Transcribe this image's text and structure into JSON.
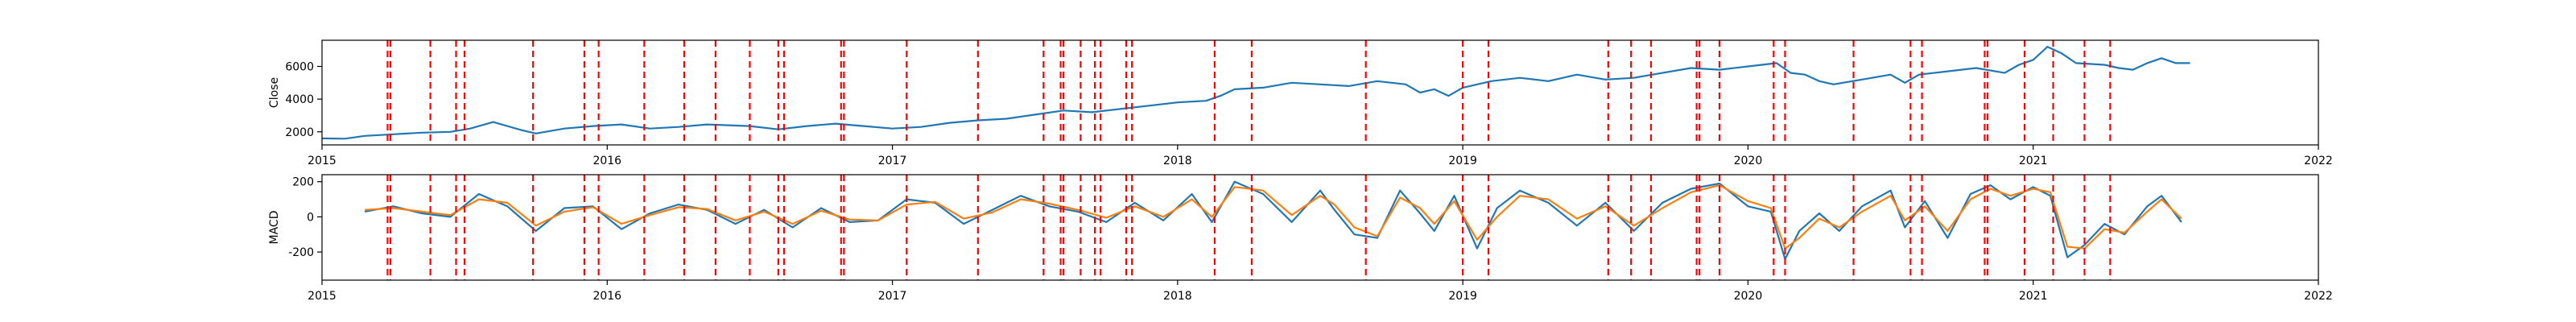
{
  "chart_data": [
    {
      "type": "line",
      "ylabel": "Close",
      "ylim": [
        1200,
        7600
      ],
      "yticks": [
        2000,
        4000,
        6000
      ],
      "xlim": [
        2015.0,
        2022.0
      ],
      "xticks": [
        "2015",
        "2016",
        "2017",
        "2018",
        "2019",
        "2020",
        "2021",
        "2022"
      ],
      "series": [
        {
          "color": "#1f77b4",
          "x": [
            2015.0,
            2015.08,
            2015.15,
            2015.25,
            2015.35,
            2015.45,
            2015.52,
            2015.6,
            2015.7,
            2015.75,
            2015.85,
            2015.95,
            2016.05,
            2016.15,
            2016.25,
            2016.35,
            2016.5,
            2016.6,
            2016.7,
            2016.8,
            2016.9,
            2017.0,
            2017.1,
            2017.2,
            2017.3,
            2017.4,
            2017.5,
            2017.6,
            2017.7,
            2017.8,
            2017.9,
            2018.0,
            2018.1,
            2018.15,
            2018.2,
            2018.3,
            2018.4,
            2018.5,
            2018.6,
            2018.7,
            2018.8,
            2018.85,
            2018.9,
            2018.95,
            2019.0,
            2019.1,
            2019.2,
            2019.3,
            2019.4,
            2019.5,
            2019.6,
            2019.7,
            2019.8,
            2019.9,
            2020.0,
            2020.1,
            2020.15,
            2020.2,
            2020.25,
            2020.3,
            2020.4,
            2020.5,
            2020.55,
            2020.6,
            2020.7,
            2020.8,
            2020.9,
            2020.95,
            2021.0,
            2021.05,
            2021.1,
            2021.15,
            2021.25,
            2021.3,
            2021.35,
            2021.4,
            2021.45,
            2021.5,
            2021.55
          ],
          "y": [
            1600,
            1580,
            1750,
            1850,
            1950,
            2000,
            2200,
            2600,
            2100,
            1900,
            2200,
            2350,
            2450,
            2200,
            2300,
            2450,
            2350,
            2150,
            2350,
            2500,
            2350,
            2200,
            2300,
            2550,
            2700,
            2800,
            3050,
            3300,
            3200,
            3400,
            3600,
            3800,
            3900,
            4200,
            4600,
            4700,
            5000,
            4900,
            4800,
            5100,
            4900,
            4400,
            4600,
            4200,
            4700,
            5100,
            5300,
            5100,
            5500,
            5200,
            5300,
            5600,
            5900,
            5800,
            6000,
            6200,
            5600,
            5500,
            5100,
            4900,
            5200,
            5500,
            5000,
            5500,
            5700,
            5900,
            5600,
            6100,
            6400,
            7200,
            6800,
            6200,
            6100,
            5900,
            5800,
            6200,
            6500,
            6200,
            6200
          ]
        }
      ]
    },
    {
      "type": "line",
      "ylabel": "MACD",
      "ylim": [
        -360,
        240
      ],
      "yticks": [
        -200,
        0,
        200
      ],
      "xlim": [
        2015.0,
        2022.0
      ],
      "xticks": [
        "2015",
        "2016",
        "2017",
        "2018",
        "2019",
        "2020",
        "2021",
        "2022"
      ],
      "series": [
        {
          "color": "#1f77b4",
          "x": [
            2015.15,
            2015.25,
            2015.35,
            2015.45,
            2015.55,
            2015.65,
            2015.75,
            2015.85,
            2015.95,
            2016.05,
            2016.15,
            2016.25,
            2016.35,
            2016.45,
            2016.55,
            2016.65,
            2016.75,
            2016.85,
            2016.95,
            2017.05,
            2017.15,
            2017.25,
            2017.35,
            2017.45,
            2017.55,
            2017.65,
            2017.75,
            2017.85,
            2017.95,
            2018.05,
            2018.12,
            2018.2,
            2018.3,
            2018.4,
            2018.5,
            2018.55,
            2018.62,
            2018.7,
            2018.78,
            2018.85,
            2018.9,
            2018.97,
            2019.05,
            2019.12,
            2019.2,
            2019.3,
            2019.4,
            2019.5,
            2019.6,
            2019.7,
            2019.8,
            2019.9,
            2020.0,
            2020.08,
            2020.13,
            2020.18,
            2020.25,
            2020.32,
            2020.4,
            2020.5,
            2020.55,
            2020.62,
            2020.7,
            2020.78,
            2020.85,
            2020.92,
            2021.0,
            2021.06,
            2021.12,
            2021.18,
            2021.25,
            2021.32,
            2021.4,
            2021.45,
            2021.52
          ],
          "y": [
            30,
            60,
            20,
            0,
            130,
            60,
            -80,
            50,
            60,
            -70,
            20,
            70,
            40,
            -40,
            40,
            -60,
            50,
            -30,
            -20,
            100,
            80,
            -40,
            40,
            120,
            60,
            30,
            -30,
            80,
            -20,
            130,
            -30,
            200,
            130,
            -30,
            150,
            40,
            -100,
            -120,
            150,
            20,
            -80,
            120,
            -180,
            50,
            150,
            80,
            -50,
            80,
            -80,
            80,
            160,
            190,
            60,
            30,
            -240,
            -80,
            20,
            -80,
            60,
            150,
            -60,
            90,
            -120,
            130,
            180,
            100,
            170,
            120,
            -230,
            -160,
            -40,
            -100,
            60,
            120,
            -30
          ]
        },
        {
          "color": "#ff7f0e",
          "x": [
            2015.15,
            2015.25,
            2015.35,
            2015.45,
            2015.55,
            2015.65,
            2015.75,
            2015.85,
            2015.95,
            2016.05,
            2016.15,
            2016.25,
            2016.35,
            2016.45,
            2016.55,
            2016.65,
            2016.75,
            2016.85,
            2016.95,
            2017.05,
            2017.15,
            2017.25,
            2017.35,
            2017.45,
            2017.55,
            2017.65,
            2017.75,
            2017.85,
            2017.95,
            2018.05,
            2018.12,
            2018.2,
            2018.3,
            2018.4,
            2018.5,
            2018.55,
            2018.62,
            2018.7,
            2018.78,
            2018.85,
            2018.9,
            2018.97,
            2019.05,
            2019.12,
            2019.2,
            2019.3,
            2019.4,
            2019.5,
            2019.6,
            2019.7,
            2019.8,
            2019.9,
            2020.0,
            2020.08,
            2020.13,
            2020.18,
            2020.25,
            2020.32,
            2020.4,
            2020.5,
            2020.55,
            2020.62,
            2020.7,
            2020.78,
            2020.85,
            2020.92,
            2021.0,
            2021.06,
            2021.12,
            2021.18,
            2021.25,
            2021.32,
            2021.4,
            2021.45,
            2021.52
          ],
          "y": [
            40,
            50,
            30,
            10,
            100,
            80,
            -50,
            30,
            55,
            -40,
            10,
            55,
            45,
            -20,
            30,
            -40,
            35,
            -15,
            -20,
            70,
            85,
            -10,
            25,
            100,
            75,
            40,
            -5,
            60,
            0,
            100,
            0,
            170,
            150,
            10,
            120,
            70,
            -60,
            -110,
            110,
            50,
            -40,
            90,
            -130,
            0,
            120,
            100,
            -10,
            60,
            -50,
            50,
            140,
            180,
            90,
            50,
            -180,
            -120,
            -10,
            -60,
            30,
            120,
            -20,
            60,
            -80,
            100,
            160,
            120,
            160,
            140,
            -170,
            -180,
            -70,
            -90,
            30,
            100,
            -10
          ]
        }
      ]
    }
  ],
  "events": [
    2015.23,
    2015.24,
    2015.38,
    2015.47,
    2015.5,
    2015.74,
    2015.92,
    2015.97,
    2016.13,
    2016.27,
    2016.38,
    2016.5,
    2016.6,
    2016.62,
    2016.82,
    2016.83,
    2017.05,
    2017.3,
    2017.53,
    2017.59,
    2017.6,
    2017.66,
    2017.71,
    2017.73,
    2017.82,
    2017.84,
    2018.13,
    2018.26,
    2018.66,
    2019.0,
    2019.09,
    2019.51,
    2019.59,
    2019.66,
    2019.82,
    2019.83,
    2019.9,
    2020.09,
    2020.13,
    2020.37,
    2020.57,
    2020.61,
    2020.83,
    2020.84,
    2020.97,
    2021.07,
    2021.18,
    2021.27
  ]
}
